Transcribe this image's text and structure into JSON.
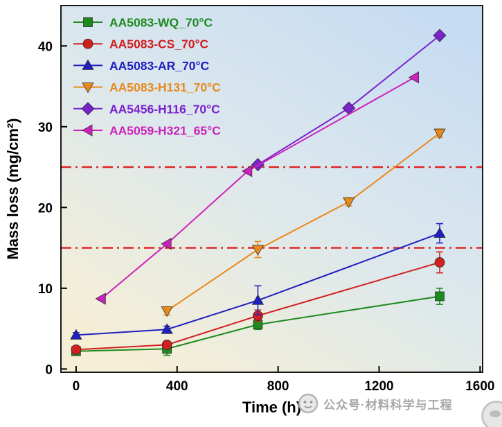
{
  "watermark": {
    "text": "公众号·材料科学与工程"
  },
  "chart_data": {
    "type": "line",
    "title": "",
    "xlabel": "Time (h)",
    "ylabel": "Mass loss (mg/cm²)",
    "xlim": [
      -60,
      1610
    ],
    "ylim": [
      -0.4,
      45
    ],
    "xticks": [
      0,
      400,
      800,
      1200,
      1600
    ],
    "yticks": [
      0,
      10,
      20,
      30,
      40
    ],
    "grid": false,
    "legend_position": "top-left",
    "background_gradient": [
      "#c6dcf3",
      "#dde8ec",
      "#f7efd5"
    ],
    "reference_lines": [
      {
        "y": 15,
        "color": "#e01f1f",
        "style": "dash-dot"
      },
      {
        "y": 25,
        "color": "#e01f1f",
        "style": "dash-dot"
      }
    ],
    "series": [
      {
        "name": "AA5083-WQ_70°C",
        "color": "#1e8a1e",
        "marker": "square",
        "x": [
          0,
          360,
          720,
          1440
        ],
        "y": [
          2.2,
          2.5,
          5.5,
          9.0
        ],
        "yerr": [
          0.3,
          0.8,
          0.6,
          1.0
        ]
      },
      {
        "name": "AA5083-CS_70°C",
        "color": "#d02020",
        "marker": "circle",
        "x": [
          0,
          360,
          720,
          1440
        ],
        "y": [
          2.4,
          3.0,
          6.6,
          13.2
        ],
        "yerr": [
          0.3,
          0.4,
          0.7,
          1.3
        ]
      },
      {
        "name": "AA5083-AR_70°C",
        "color": "#2020c0",
        "marker": "triangle-up",
        "x": [
          0,
          360,
          720,
          1440
        ],
        "y": [
          4.2,
          4.9,
          8.5,
          16.8
        ],
        "yerr": [
          0.3,
          0.4,
          1.8,
          1.2
        ]
      },
      {
        "name": "AA5083-H131_70°C",
        "color": "#e8891c",
        "marker": "triangle-down",
        "x": [
          360,
          720,
          1080,
          1440
        ],
        "y": [
          7.2,
          14.8,
          20.7,
          29.2
        ],
        "yerr": [
          0.5,
          1.0,
          0.5,
          0.5
        ]
      },
      {
        "name": "AA5456-H116_70°C",
        "color": "#7a22cc",
        "marker": "diamond",
        "x": [
          720,
          1080,
          1440
        ],
        "y": [
          25.3,
          32.3,
          41.3
        ],
        "yerr": [
          0.3,
          0.3,
          0.3
        ]
      },
      {
        "name": "AA5059-H321_65°C",
        "color": "#cc22bb",
        "marker": "triangle-left",
        "x": [
          100,
          360,
          680,
          1340
        ],
        "y": [
          8.7,
          15.5,
          24.5,
          36.1
        ],
        "yerr": [
          0,
          0,
          0,
          0
        ]
      }
    ]
  }
}
